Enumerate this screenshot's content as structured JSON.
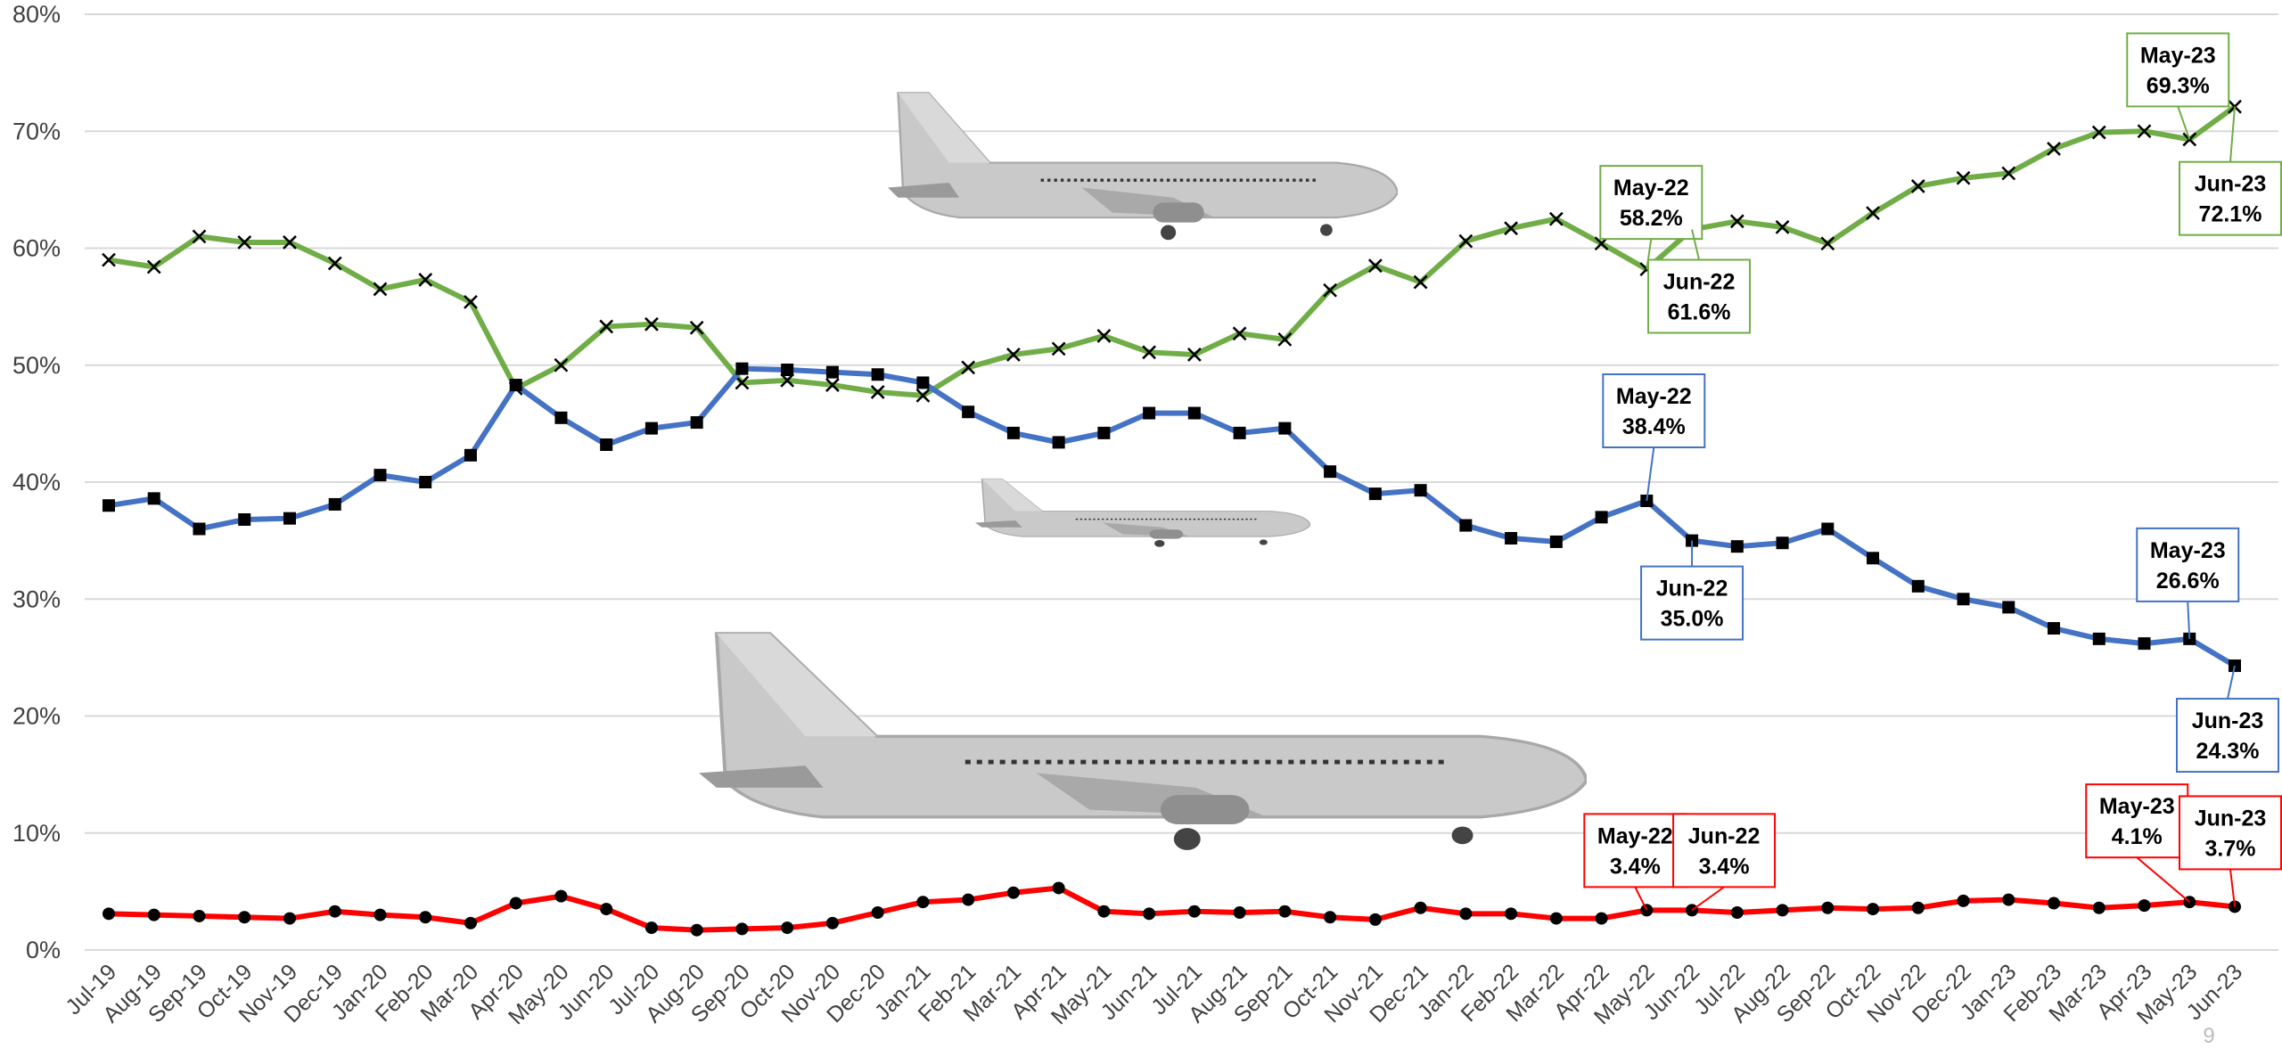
{
  "chart_data": {
    "type": "line",
    "categories": [
      "Jul-19",
      "Aug-19",
      "Sep-19",
      "Oct-19",
      "Nov-19",
      "Dec-19",
      "Jan-20",
      "Feb-20",
      "Mar-20",
      "Apr-20",
      "May-20",
      "Jun-20",
      "Jul-20",
      "Aug-20",
      "Sep-20",
      "Oct-20",
      "Nov-20",
      "Dec-20",
      "Jan-21",
      "Feb-21",
      "Mar-21",
      "Apr-21",
      "May-21",
      "Jun-21",
      "Jul-21",
      "Aug-21",
      "Sep-21",
      "Oct-21",
      "Nov-21",
      "Dec-21",
      "Jan-22",
      "Feb-22",
      "Mar-22",
      "Apr-22",
      "May-22",
      "Jun-22",
      "Jul-22",
      "Aug-22",
      "Sep-22",
      "Oct-22",
      "Nov-22",
      "Dec-22",
      "Jan-23",
      "Feb-23",
      "Mar-23",
      "Apr-23",
      "May-23",
      "Jun-23"
    ],
    "series": [
      {
        "color": "#70ad47",
        "marker": "x",
        "values": [
          59.0,
          58.4,
          61.0,
          60.5,
          60.5,
          58.7,
          56.5,
          57.3,
          55.4,
          48.0,
          50.0,
          53.3,
          53.5,
          53.2,
          48.5,
          48.7,
          48.3,
          47.7,
          47.4,
          49.8,
          50.9,
          51.4,
          52.5,
          51.1,
          50.9,
          52.7,
          52.2,
          56.4,
          58.5,
          57.1,
          60.6,
          61.7,
          62.5,
          60.4,
          58.2,
          61.6,
          62.3,
          61.8,
          60.4,
          63.0,
          65.3,
          66.0,
          66.4,
          68.5,
          69.9,
          70.0,
          69.3,
          72.1
        ],
        "value_labels": [
          null,
          null,
          null,
          null,
          null,
          null,
          null,
          null,
          null,
          null,
          null,
          null,
          null,
          null,
          null,
          null,
          null,
          null,
          null,
          null,
          null,
          null,
          null,
          null,
          null,
          null,
          null,
          null,
          null,
          null,
          null,
          null,
          null,
          null,
          "58.2%",
          "61.6%",
          null,
          null,
          null,
          null,
          null,
          null,
          null,
          null,
          null,
          null,
          "69.3%",
          "72.1%"
        ]
      },
      {
        "color": "#4472c4",
        "marker": "square",
        "values": [
          38.0,
          38.6,
          36.0,
          36.8,
          36.9,
          38.1,
          40.6,
          40.0,
          42.3,
          48.3,
          45.5,
          43.2,
          44.6,
          45.1,
          49.7,
          49.6,
          49.4,
          49.2,
          48.5,
          46.0,
          44.2,
          43.4,
          44.2,
          45.9,
          45.9,
          44.2,
          44.6,
          40.9,
          39.0,
          39.3,
          36.3,
          35.2,
          34.9,
          37.0,
          38.4,
          35.0,
          34.5,
          34.8,
          36.0,
          33.5,
          31.1,
          30.0,
          29.3,
          27.5,
          26.6,
          26.2,
          26.6,
          24.3
        ],
        "value_labels": [
          null,
          null,
          null,
          null,
          null,
          null,
          null,
          null,
          null,
          null,
          null,
          null,
          null,
          null,
          null,
          null,
          null,
          null,
          null,
          null,
          null,
          null,
          null,
          null,
          null,
          null,
          null,
          null,
          null,
          null,
          null,
          null,
          null,
          null,
          "38.4%",
          "35.0%",
          null,
          null,
          null,
          null,
          null,
          null,
          null,
          null,
          null,
          null,
          "26.6%",
          "24.3%"
        ]
      },
      {
        "color": "#ff0000",
        "marker": "circle",
        "values": [
          3.1,
          3.0,
          2.9,
          2.8,
          2.7,
          3.3,
          3.0,
          2.8,
          2.3,
          4.0,
          4.6,
          3.5,
          1.9,
          1.7,
          1.8,
          1.9,
          2.3,
          3.2,
          4.1,
          4.3,
          4.9,
          5.3,
          3.3,
          3.1,
          3.3,
          3.2,
          3.3,
          2.8,
          2.6,
          3.6,
          3.1,
          3.1,
          2.7,
          2.7,
          3.4,
          3.4,
          3.2,
          3.4,
          3.6,
          3.5,
          3.6,
          4.2,
          4.3,
          4.0,
          3.6,
          3.8,
          4.1,
          3.7
        ],
        "value_labels": [
          null,
          null,
          null,
          null,
          null,
          null,
          null,
          null,
          null,
          null,
          null,
          null,
          null,
          null,
          null,
          null,
          null,
          null,
          null,
          null,
          null,
          null,
          null,
          null,
          null,
          null,
          null,
          null,
          null,
          null,
          null,
          null,
          null,
          null,
          "3.4%",
          "3.4%",
          null,
          null,
          null,
          null,
          null,
          null,
          null,
          null,
          null,
          null,
          "4.1%",
          "3.7%"
        ]
      }
    ],
    "ylim": [
      0,
      80
    ],
    "yticks": [
      {
        "value": 0,
        "label": "0%"
      },
      {
        "value": 10,
        "label": "10%"
      },
      {
        "value": 20,
        "label": "20%"
      },
      {
        "value": 30,
        "label": "30%"
      },
      {
        "value": 40,
        "label": "40%"
      },
      {
        "value": 50,
        "label": "50%"
      },
      {
        "value": 60,
        "label": "60%"
      },
      {
        "value": 70,
        "label": "70%"
      },
      {
        "value": 80,
        "label": "80%"
      }
    ],
    "grid": true,
    "page_number": "9"
  }
}
